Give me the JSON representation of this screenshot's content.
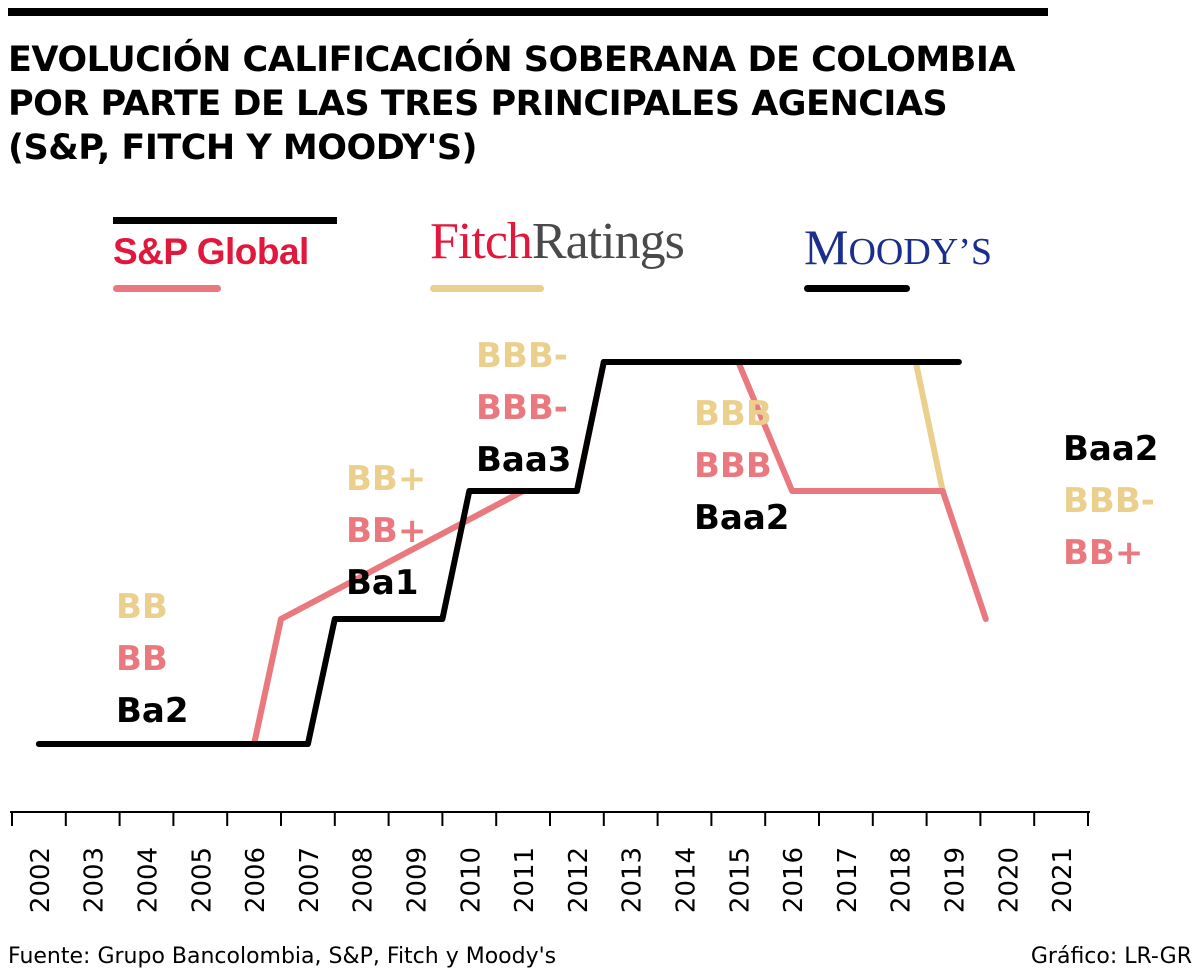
{
  "title_lines": [
    "EVOLUCIÓN CALIFICACIÓN SOBERANA DE COLOMBIA",
    "POR PARTE DE LAS TRES PRINCIPALES AGENCIAS",
    "(S&P, FITCH Y MOODY'S)"
  ],
  "legend": {
    "sp": {
      "logo_text": "S&P Global",
      "swatch_color": "#e9797e"
    },
    "fitch": {
      "logo_part1": "Fitch",
      "logo_part2": "Ratings",
      "swatch_color": "#ebcf8c"
    },
    "moodys": {
      "logo_first": "M",
      "logo_rest": "OODY’S",
      "swatch_color": "#000000"
    }
  },
  "chart_data": {
    "type": "line",
    "x_ticks": [
      "2002",
      "2003",
      "2004",
      "2005",
      "2006",
      "2007",
      "2008",
      "2009",
      "2010",
      "2011",
      "2012",
      "2013",
      "2014",
      "2015",
      "2016",
      "2017",
      "2018",
      "2019",
      "2020",
      "2021"
    ],
    "levels": [
      "Ba2 / BB",
      "Ba1 / BB+",
      "Baa3 / BBB-",
      "Baa2 / BBB"
    ],
    "series": [
      {
        "agency": "sp",
        "color": "#e9797e",
        "points": [
          [
            2002.5,
            0
          ],
          [
            2006.5,
            0
          ],
          [
            2007.0,
            1
          ],
          [
            2011.5,
            2
          ],
          [
            2012.5,
            2
          ],
          [
            2013.0,
            3
          ],
          [
            2015.5,
            3
          ],
          [
            2016.5,
            2
          ],
          [
            2019.3,
            2
          ],
          [
            2020.1,
            1
          ]
        ]
      },
      {
        "agency": "fitch",
        "color": "#ebcf8c",
        "points": [
          [
            2002.5,
            0
          ],
          [
            2006.5,
            0
          ],
          [
            2007.0,
            1
          ],
          [
            2011.5,
            2
          ],
          [
            2012.5,
            2
          ],
          [
            2013.0,
            3
          ],
          [
            2018.8,
            3
          ],
          [
            2019.3,
            2
          ]
        ]
      },
      {
        "agency": "moodys",
        "color": "#000000",
        "points": [
          [
            2002.5,
            0
          ],
          [
            2007.5,
            0
          ],
          [
            2008.0,
            1
          ],
          [
            2010.0,
            1
          ],
          [
            2010.5,
            2
          ],
          [
            2011.5,
            2
          ],
          [
            2012.5,
            2
          ],
          [
            2013.0,
            3
          ],
          [
            2019.6,
            3
          ]
        ]
      }
    ],
    "annotations": [
      {
        "x": 2003.5,
        "level": "low",
        "labels": [
          {
            "text": "BB",
            "color": "#ebcf8c"
          },
          {
            "text": "BB",
            "color": "#e9797e"
          },
          {
            "text": "Ba2",
            "color": "#000000"
          }
        ]
      },
      {
        "x": 2008.2,
        "level": "mid1",
        "labels": [
          {
            "text": "BB+",
            "color": "#ebcf8c"
          },
          {
            "text": "BB+",
            "color": "#e9797e"
          },
          {
            "text": "Ba1",
            "color": "#000000"
          }
        ]
      },
      {
        "x": 2010.7,
        "level": "mid2",
        "labels": [
          {
            "text": "BBB-",
            "color": "#ebcf8c"
          },
          {
            "text": "BBB-",
            "color": "#e9797e"
          },
          {
            "text": "Baa3",
            "color": "#000000"
          }
        ]
      },
      {
        "x": 2014.2,
        "level": "top",
        "labels": [
          {
            "text": "BBB",
            "color": "#ebcf8c"
          },
          {
            "text": "BBB",
            "color": "#e9797e"
          },
          {
            "text": "Baa2",
            "color": "#000000"
          }
        ]
      },
      {
        "x": 2020.4,
        "level": "end",
        "labels": [
          {
            "text": "Baa2",
            "color": "#000000"
          },
          {
            "text": "BBB-",
            "color": "#ebcf8c"
          },
          {
            "text": "BB+",
            "color": "#e9797e"
          }
        ]
      }
    ]
  },
  "footer": {
    "source": "Fuente: Grupo Bancolombia, S&P, Fitch y Moody's",
    "credit": "Gráfico: LR-GR"
  }
}
